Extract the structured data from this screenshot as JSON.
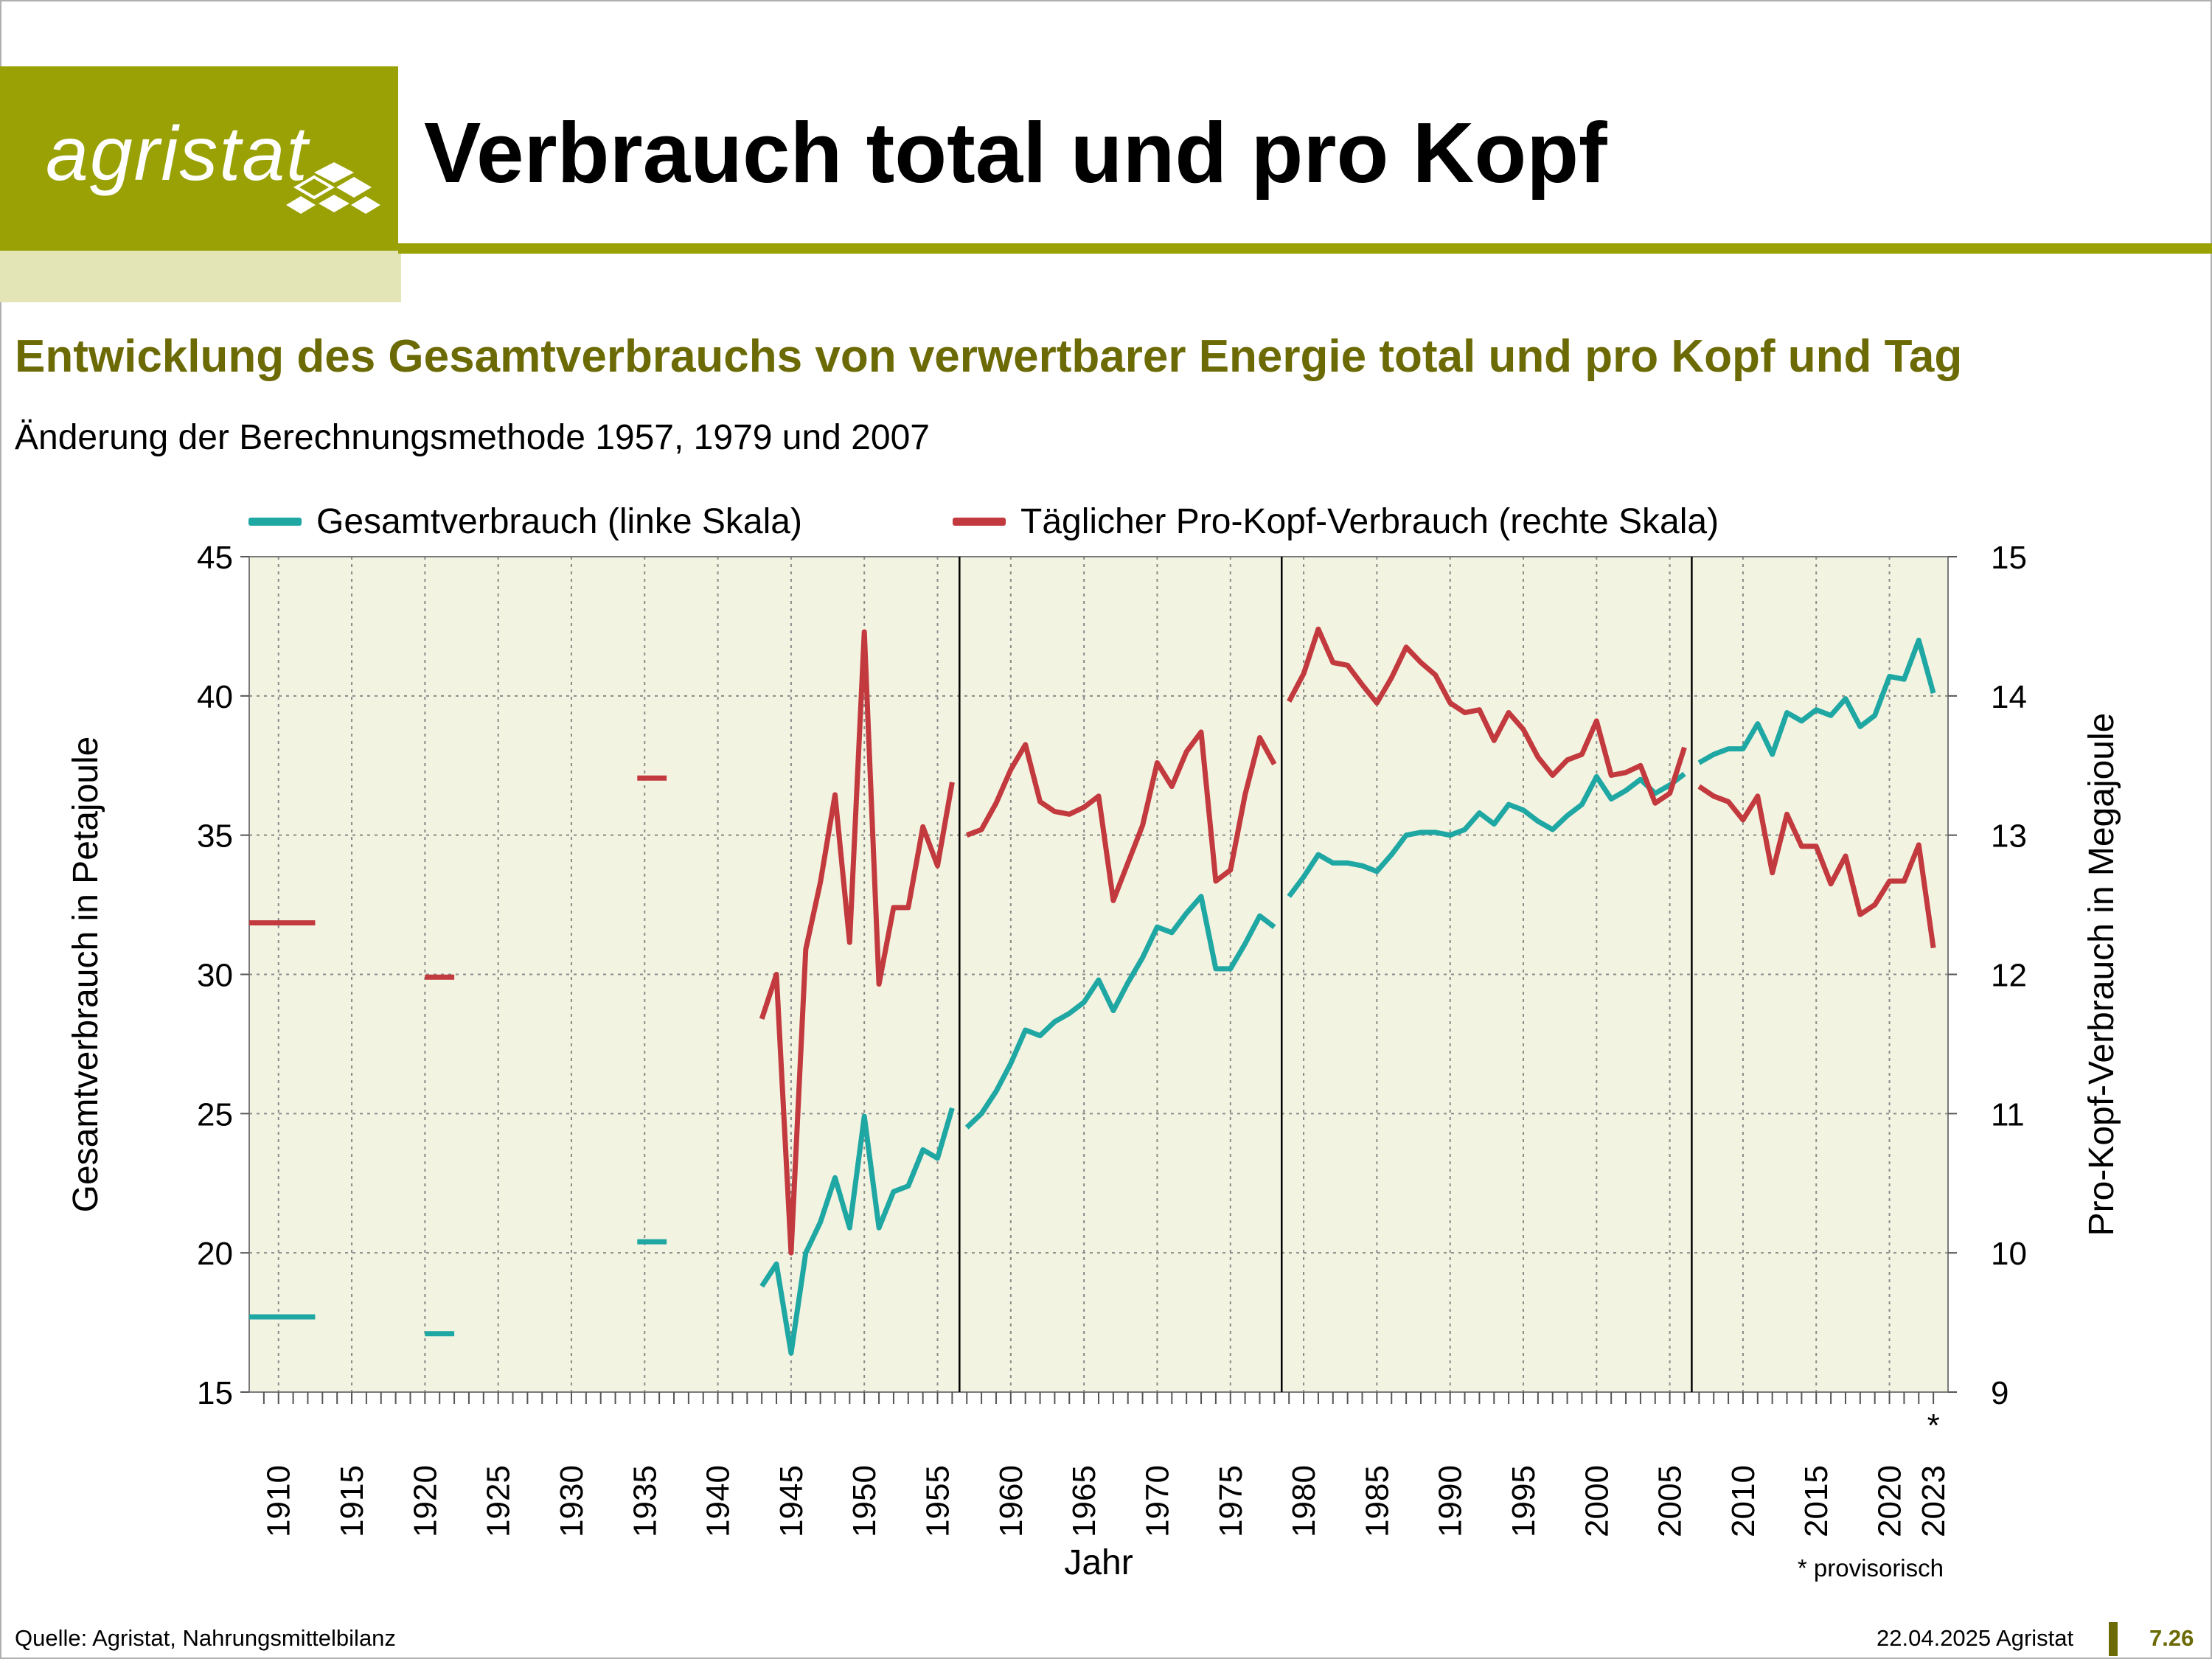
{
  "header": {
    "logo_text": "agristat",
    "title": "Verbrauch total und pro Kopf",
    "subtitle": "Entwicklung des Gesamtverbrauchs von verwertbarer Energie total und pro Kopf und Tag",
    "note": "Änderung der Berechnungsmethode 1957, 1979 und 2007"
  },
  "colors": {
    "brand": "#9aa105",
    "brand_light": "#e3e5b6",
    "subtitle": "#6b6a05",
    "teal": "#1fa7a3",
    "red": "#c2393e",
    "plot_bg": "#f3f3e1"
  },
  "footer": {
    "source": "Quelle: Agristat, Nahrungsmittelbilanz",
    "date": "22.04.2025 Agristat",
    "page": "7.26"
  },
  "chart_data": {
    "type": "line",
    "title": "",
    "xlabel": "Jahr",
    "ylabel_left": "Gesamtverbrauch in Petajoule",
    "ylabel_right": "Pro-Kopf-Verbrauch in Megajoule",
    "ylim_left": [
      15,
      45
    ],
    "yticks_left": [
      "15",
      "20",
      "25",
      "30",
      "35",
      "40",
      "45"
    ],
    "ylim_right": [
      9,
      15
    ],
    "yticks_right": [
      "9",
      "10",
      "11",
      "12",
      "13",
      "14",
      "15"
    ],
    "xlim": [
      1908,
      2024
    ],
    "xtick_labels": [
      "1910",
      "1915",
      "1920",
      "1925",
      "1930",
      "1935",
      "1940",
      "1945",
      "1950",
      "1955",
      "1960",
      "1965",
      "1970",
      "1975",
      "1980",
      "1985",
      "1990",
      "1995",
      "2000",
      "2005",
      "2010",
      "2015",
      "2020",
      "2023"
    ],
    "xtick_values": [
      1910,
      1915,
      1920,
      1925,
      1930,
      1935,
      1940,
      1945,
      1950,
      1955,
      1960,
      1965,
      1970,
      1975,
      1980,
      1985,
      1990,
      1995,
      2000,
      2005,
      2010,
      2015,
      2020,
      2023
    ],
    "last_tick_marker": "*",
    "footnote": "* provisorisch",
    "grid": true,
    "method_breaks": [
      1957,
      1979,
      2007
    ],
    "legend_position": "top",
    "series": [
      {
        "name": "Gesamtverbrauch (linke Skala)",
        "axis": "left",
        "color": "#1fa7a3",
        "segments": [
          {
            "x": [
              1908,
              1912.5
            ],
            "y": [
              17.7,
              17.7
            ]
          },
          {
            "x": [
              1920,
              1922
            ],
            "y": [
              17.1,
              17.1
            ]
          },
          {
            "x": [
              1934.5,
              1936.5
            ],
            "y": [
              20.4,
              20.4
            ]
          },
          {
            "x": [
              1943,
              1944,
              1945,
              1946,
              1947,
              1948,
              1949,
              1950,
              1951,
              1952,
              1953,
              1954,
              1955,
              1956
            ],
            "y": [
              18.8,
              19.6,
              16.4,
              20.0,
              21.1,
              22.7,
              20.9,
              24.9,
              20.9,
              22.2,
              22.4,
              23.7,
              23.4,
              25.2
            ]
          },
          {
            "x": [
              1957,
              1958,
              1959,
              1960,
              1961,
              1962,
              1963,
              1964,
              1965,
              1966,
              1967,
              1968,
              1969,
              1970,
              1971,
              1972,
              1973,
              1974,
              1975,
              1976,
              1977,
              1978
            ],
            "y": [
              24.5,
              25.0,
              25.8,
              26.8,
              28.0,
              27.8,
              28.3,
              28.6,
              29.0,
              29.8,
              28.7,
              29.7,
              30.6,
              31.7,
              31.5,
              32.2,
              32.8,
              30.2,
              30.2,
              31.1,
              32.1,
              31.7
            ]
          },
          {
            "x": [
              1979,
              1980,
              1981,
              1982,
              1983,
              1984,
              1985,
              1986,
              1987,
              1988,
              1989,
              1990,
              1991,
              1992,
              1993,
              1994,
              1995,
              1996,
              1997,
              1998,
              1999,
              2000,
              2001,
              2002,
              2003,
              2004,
              2005,
              2006
            ],
            "y": [
              32.8,
              33.5,
              34.3,
              34.0,
              34.0,
              33.9,
              33.7,
              34.3,
              35.0,
              35.1,
              35.1,
              35.0,
              35.2,
              35.8,
              35.4,
              36.1,
              35.9,
              35.5,
              35.2,
              35.7,
              36.1,
              37.1,
              36.3,
              36.6,
              37.0,
              36.5,
              36.8,
              37.2
            ]
          },
          {
            "x": [
              2007,
              2008,
              2009,
              2010,
              2011,
              2012,
              2013,
              2014,
              2015,
              2016,
              2017,
              2018,
              2019,
              2020,
              2021,
              2022,
              2023
            ],
            "y": [
              37.6,
              37.9,
              38.1,
              38.1,
              39.0,
              37.9,
              39.4,
              39.1,
              39.5,
              39.3,
              39.9,
              38.9,
              39.3,
              40.7,
              40.6,
              42.0,
              40.1
            ]
          }
        ]
      },
      {
        "name": "Täglicher Pro-Kopf-Verbrauch (rechte Skala)",
        "axis": "right",
        "color": "#c2393e",
        "segments": [
          {
            "x": [
              1908,
              1912.5
            ],
            "y": [
              12.37,
              12.37
            ]
          },
          {
            "x": [
              1920,
              1922
            ],
            "y": [
              11.98,
              11.98
            ]
          },
          {
            "x": [
              1934.5,
              1936.5
            ],
            "y": [
              13.41,
              13.41
            ]
          },
          {
            "x": [
              1943,
              1944,
              1945,
              1946,
              1947,
              1948,
              1949,
              1950,
              1951,
              1952,
              1953,
              1954,
              1955,
              1956
            ],
            "y": [
              11.68,
              12.0,
              10.0,
              12.18,
              12.66,
              13.29,
              12.23,
              14.46,
              11.93,
              12.48,
              12.48,
              13.06,
              12.78,
              13.38
            ]
          },
          {
            "x": [
              1957,
              1958,
              1959,
              1960,
              1961,
              1962,
              1963,
              1964,
              1965,
              1966,
              1967,
              1968,
              1969,
              1970,
              1971,
              1972,
              1973,
              1974,
              1975,
              1976,
              1977,
              1978
            ],
            "y": [
              13.0,
              13.04,
              13.23,
              13.47,
              13.65,
              13.24,
              13.17,
              13.15,
              13.2,
              13.28,
              12.53,
              12.8,
              13.07,
              13.52,
              13.35,
              13.6,
              13.74,
              12.67,
              12.75,
              13.29,
              13.7,
              13.51
            ]
          },
          {
            "x": [
              1979,
              1980,
              1981,
              1982,
              1983,
              1984,
              1985,
              1986,
              1987,
              1988,
              1989,
              1990,
              1991,
              1992,
              1993,
              1994,
              1995,
              1996,
              1997,
              1998,
              1999,
              2000,
              2001,
              2002,
              2003,
              2004,
              2005,
              2006
            ],
            "y": [
              13.96,
              14.16,
              14.48,
              14.24,
              14.22,
              14.08,
              13.95,
              14.13,
              14.35,
              14.24,
              14.15,
              13.95,
              13.88,
              13.9,
              13.68,
              13.88,
              13.76,
              13.56,
              13.43,
              13.54,
              13.58,
              13.82,
              13.43,
              13.45,
              13.5,
              13.23,
              13.3,
              13.63
            ]
          },
          {
            "x": [
              2007,
              2008,
              2009,
              2010,
              2011,
              2012,
              2013,
              2014,
              2015,
              2016,
              2017,
              2018,
              2019,
              2020,
              2021,
              2022,
              2023
            ],
            "y": [
              13.35,
              13.28,
              13.24,
              13.11,
              13.28,
              12.73,
              13.15,
              12.92,
              12.92,
              12.65,
              12.85,
              12.43,
              12.5,
              12.67,
              12.67,
              12.93,
              12.19
            ]
          }
        ]
      }
    ]
  }
}
